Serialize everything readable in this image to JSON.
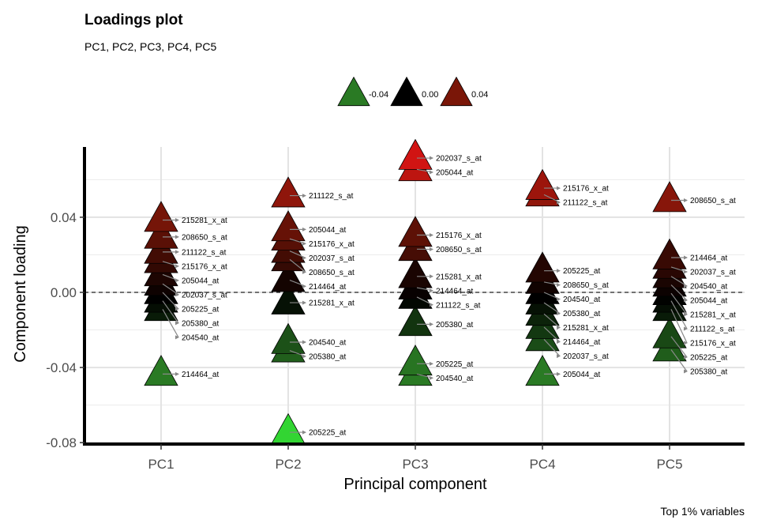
{
  "title": "Loadings plot",
  "subtitle": "PC1, PC2, PC3, PC4, PC5",
  "caption": "Top 1% variables",
  "chart_data": {
    "type": "scatter",
    "xlabel": "Principal component",
    "ylabel": "Component loading",
    "categories": [
      "PC1",
      "PC2",
      "PC3",
      "PC4",
      "PC5"
    ],
    "ylim": [
      -0.08,
      0.08
    ],
    "yticks": [
      -0.08,
      -0.04,
      0.0,
      0.04
    ],
    "ytick_labels": [
      "-0.08",
      "-0.04",
      "0.00",
      "0.04"
    ],
    "reference_line": 0,
    "grid": true,
    "legend": {
      "position": "top",
      "entries": [
        {
          "label": "-0.04",
          "value": -0.04
        },
        {
          "label": "0.00",
          "value": 0.0
        },
        {
          "label": "0.04",
          "value": 0.04
        }
      ]
    },
    "color_scale": {
      "low": "#2a7a24",
      "mid": "#000000",
      "high": "#7a1608"
    },
    "points": [
      {
        "pc": "PC1",
        "label": "215281_x_at",
        "value": 0.0385
      },
      {
        "pc": "PC1",
        "label": "208650_s_at",
        "value": 0.0295
      },
      {
        "pc": "PC1",
        "label": "211122_s_at",
        "value": 0.0215
      },
      {
        "pc": "PC1",
        "label": "215176_x_at",
        "value": 0.0165
      },
      {
        "pc": "PC1",
        "label": "205044_at",
        "value": 0.0095
      },
      {
        "pc": "PC1",
        "label": "202037_s_at",
        "value": 0.0045
      },
      {
        "pc": "PC1",
        "label": "205225_at",
        "value": 0.0
      },
      {
        "pc": "PC1",
        "label": "205380_at",
        "value": -0.0045
      },
      {
        "pc": "PC1",
        "label": "204540_at",
        "value": -0.009
      },
      {
        "pc": "PC1",
        "label": "214464_at",
        "value": -0.0435
      },
      {
        "pc": "PC2",
        "label": "211122_s_at",
        "value": 0.0515
      },
      {
        "pc": "PC2",
        "label": "205044_at",
        "value": 0.0335
      },
      {
        "pc": "PC2",
        "label": "215176_x_at",
        "value": 0.0285
      },
      {
        "pc": "PC2",
        "label": "202037_s_at",
        "value": 0.022
      },
      {
        "pc": "PC2",
        "label": "208650_s_at",
        "value": 0.0175
      },
      {
        "pc": "PC2",
        "label": "214464_at",
        "value": 0.0065
      },
      {
        "pc": "PC2",
        "label": "215281_x_at",
        "value": -0.0055
      },
      {
        "pc": "PC2",
        "label": "204540_at",
        "value": -0.0265
      },
      {
        "pc": "PC2",
        "label": "205380_at",
        "value": -0.031
      },
      {
        "pc": "PC2",
        "label": "205225_at",
        "value": -0.0745
      },
      {
        "pc": "PC3",
        "label": "202037_s_at",
        "value": 0.0715
      },
      {
        "pc": "PC3",
        "label": "205044_at",
        "value": 0.0655
      },
      {
        "pc": "PC3",
        "label": "215176_x_at",
        "value": 0.0305
      },
      {
        "pc": "PC3",
        "label": "208650_s_at",
        "value": 0.023
      },
      {
        "pc": "PC3",
        "label": "215281_x_at",
        "value": 0.0085
      },
      {
        "pc": "PC3",
        "label": "214464_at",
        "value": 0.0025
      },
      {
        "pc": "PC3",
        "label": "211122_s_at",
        "value": -0.0025
      },
      {
        "pc": "PC3",
        "label": "205380_at",
        "value": -0.017
      },
      {
        "pc": "PC3",
        "label": "205225_at",
        "value": -0.038
      },
      {
        "pc": "PC3",
        "label": "204540_at",
        "value": -0.0435
      },
      {
        "pc": "PC4",
        "label": "215176_x_at",
        "value": 0.0555
      },
      {
        "pc": "PC4",
        "label": "211122_s_at",
        "value": 0.052
      },
      {
        "pc": "PC4",
        "label": "205225_at",
        "value": 0.0115
      },
      {
        "pc": "PC4",
        "label": "208650_s_at",
        "value": 0.0055
      },
      {
        "pc": "PC4",
        "label": "204540_at",
        "value": 0.0
      },
      {
        "pc": "PC4",
        "label": "205380_at",
        "value": -0.0055
      },
      {
        "pc": "PC4",
        "label": "215281_x_at",
        "value": -0.0115
      },
      {
        "pc": "PC4",
        "label": "214464_at",
        "value": -0.0185
      },
      {
        "pc": "PC4",
        "label": "202037_s_at",
        "value": -0.025
      },
      {
        "pc": "PC4",
        "label": "205044_at",
        "value": -0.0435
      },
      {
        "pc": "PC5",
        "label": "208650_s_at",
        "value": 0.049
      },
      {
        "pc": "PC5",
        "label": "214464_at",
        "value": 0.0185
      },
      {
        "pc": "PC5",
        "label": "202037_s_at",
        "value": 0.0135
      },
      {
        "pc": "PC5",
        "label": "204540_at",
        "value": 0.0085
      },
      {
        "pc": "PC5",
        "label": "205044_at",
        "value": 0.004
      },
      {
        "pc": "PC5",
        "label": "215281_x_at",
        "value": -0.0005
      },
      {
        "pc": "PC5",
        "label": "211122_s_at",
        "value": -0.0045
      },
      {
        "pc": "PC5",
        "label": "215176_x_at",
        "value": -0.009
      },
      {
        "pc": "PC5",
        "label": "205225_at",
        "value": -0.0235
      },
      {
        "pc": "PC5",
        "label": "205380_at",
        "value": -0.0305
      }
    ]
  }
}
